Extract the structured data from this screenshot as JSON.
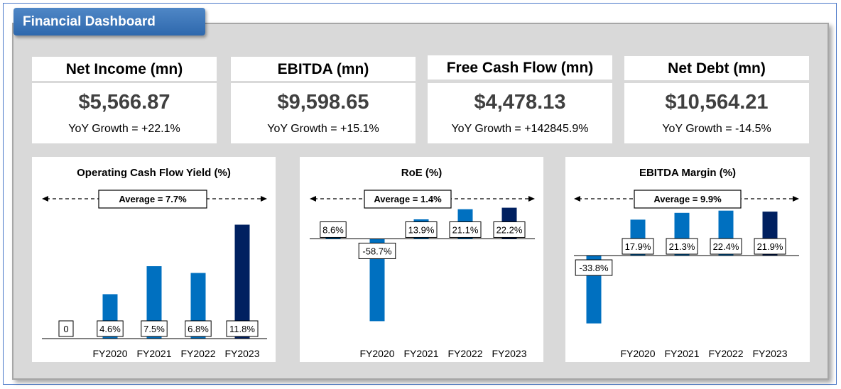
{
  "dashboard": {
    "title": "Financial Dashboard"
  },
  "kpis": [
    {
      "title": "Net Income (mn)",
      "value": "$5,566.87",
      "growth": "YoY Growth = +22.1%"
    },
    {
      "title": "EBITDA (mn)",
      "value": "$9,598.65",
      "growth": "YoY Growth = +15.1%"
    },
    {
      "title": "Free Cash Flow (mn)",
      "value": "$4,478.13",
      "growth": "YoY Growth = +142845.9%"
    },
    {
      "title": "Net Debt (mn)",
      "value": "$10,564.21",
      "growth": "YoY Growth = -14.5%"
    }
  ],
  "colors": {
    "bar": "#0070c0",
    "bar_last": "#002060",
    "title_tab": "#2e68ad"
  },
  "chart_data": [
    {
      "type": "bar",
      "title": "Operating Cash Flow Yield (%)",
      "categories": [
        "",
        "FY2020",
        "FY2021",
        "FY2022",
        "FY2023"
      ],
      "values": [
        0,
        4.6,
        7.5,
        6.8,
        11.8
      ],
      "labels": [
        "0",
        "4.6%",
        "7.5%",
        "6.8%",
        "11.8%"
      ],
      "average_label": "Average = 7.7%",
      "ylim": [
        0,
        12.5
      ]
    },
    {
      "type": "bar",
      "title": "RoE (%)",
      "categories": [
        "",
        "FY2020",
        "FY2021",
        "FY2022",
        "FY2023"
      ],
      "values": [
        8.6,
        -58.7,
        13.9,
        21.1,
        22.2
      ],
      "labels": [
        "8.6%",
        "-58.7%",
        "13.9%",
        "21.1%",
        "22.2%"
      ],
      "average_label": "Average = 1.4%",
      "ylim": [
        -60,
        22
      ]
    },
    {
      "type": "bar",
      "title": "EBITDA Margin (%)",
      "categories": [
        "",
        "FY2020",
        "FY2021",
        "FY2022",
        "FY2023"
      ],
      "values": [
        -33.8,
        17.9,
        21.3,
        22.4,
        21.9
      ],
      "labels": [
        "-33.8%",
        "17.9%",
        "21.3%",
        "22.4%",
        "21.9%"
      ],
      "average_label": "Average = 9.9%",
      "ylim": [
        -35,
        23
      ]
    }
  ]
}
